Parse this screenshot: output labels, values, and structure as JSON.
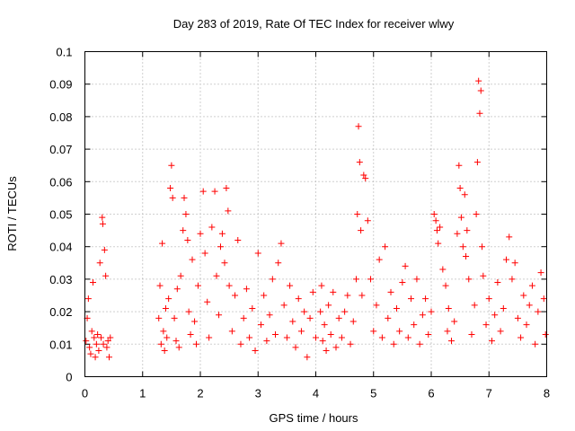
{
  "chart_data": {
    "type": "scatter",
    "title": "Day 283 of 2019, Rate Of TEC Index for receiver wlwy",
    "xlabel": "GPS time / hours",
    "ylabel": "ROTI / TECUs",
    "xlim": [
      0,
      8
    ],
    "ylim": [
      0,
      0.1
    ],
    "grid": true,
    "marker": "+",
    "colors": {
      "series": "#ff0000",
      "frame": "#000000",
      "grid": "#a0a0a0"
    },
    "x_ticks": [
      {
        "value": 0,
        "label": "0"
      },
      {
        "value": 1,
        "label": "1"
      },
      {
        "value": 2,
        "label": "2"
      },
      {
        "value": 3,
        "label": "3"
      },
      {
        "value": 4,
        "label": "4"
      },
      {
        "value": 5,
        "label": "5"
      },
      {
        "value": 6,
        "label": "6"
      },
      {
        "value": 7,
        "label": "7"
      },
      {
        "value": 8,
        "label": "8"
      }
    ],
    "y_ticks": [
      {
        "value": 0,
        "label": "0"
      },
      {
        "value": 0.01,
        "label": "0.01"
      },
      {
        "value": 0.02,
        "label": "0.02"
      },
      {
        "value": 0.03,
        "label": "0.03"
      },
      {
        "value": 0.04,
        "label": "0.04"
      },
      {
        "value": 0.05,
        "label": "0.05"
      },
      {
        "value": 0.06,
        "label": "0.06"
      },
      {
        "value": 0.07,
        "label": "0.07"
      },
      {
        "value": 0.08,
        "label": "0.08"
      },
      {
        "value": 0.09,
        "label": "0.09"
      },
      {
        "value": 0.1,
        "label": "0.1"
      }
    ],
    "series": [
      {
        "name": "ROTI",
        "points": [
          [
            0.02,
            0.011
          ],
          [
            0.04,
            0.018
          ],
          [
            0.06,
            0.024
          ],
          [
            0.08,
            0.009
          ],
          [
            0.1,
            0.007
          ],
          [
            0.12,
            0.014
          ],
          [
            0.14,
            0.029
          ],
          [
            0.16,
            0.012
          ],
          [
            0.18,
            0.006
          ],
          [
            0.2,
            0.01
          ],
          [
            0.22,
            0.013
          ],
          [
            0.24,
            0.008
          ],
          [
            0.26,
            0.035
          ],
          [
            0.28,
            0.012
          ],
          [
            0.3,
            0.049
          ],
          [
            0.31,
            0.047
          ],
          [
            0.32,
            0.01
          ],
          [
            0.34,
            0.039
          ],
          [
            0.36,
            0.031
          ],
          [
            0.38,
            0.009
          ],
          [
            0.4,
            0.011
          ],
          [
            0.42,
            0.006
          ],
          [
            0.44,
            0.012
          ],
          [
            1.28,
            0.018
          ],
          [
            1.3,
            0.028
          ],
          [
            1.32,
            0.01
          ],
          [
            1.34,
            0.041
          ],
          [
            1.36,
            0.014
          ],
          [
            1.38,
            0.008
          ],
          [
            1.4,
            0.021
          ],
          [
            1.42,
            0.012
          ],
          [
            1.45,
            0.024
          ],
          [
            1.48,
            0.058
          ],
          [
            1.5,
            0.065
          ],
          [
            1.52,
            0.055
          ],
          [
            1.55,
            0.018
          ],
          [
            1.58,
            0.011
          ],
          [
            1.6,
            0.027
          ],
          [
            1.63,
            0.009
          ],
          [
            1.66,
            0.031
          ],
          [
            1.7,
            0.045
          ],
          [
            1.72,
            0.055
          ],
          [
            1.75,
            0.05
          ],
          [
            1.78,
            0.042
          ],
          [
            1.8,
            0.02
          ],
          [
            1.83,
            0.013
          ],
          [
            1.86,
            0.036
          ],
          [
            1.9,
            0.017
          ],
          [
            1.93,
            0.01
          ],
          [
            1.96,
            0.028
          ],
          [
            2.0,
            0.044
          ],
          [
            2.05,
            0.057
          ],
          [
            2.08,
            0.038
          ],
          [
            2.12,
            0.023
          ],
          [
            2.15,
            0.012
          ],
          [
            2.2,
            0.046
          ],
          [
            2.25,
            0.057
          ],
          [
            2.28,
            0.031
          ],
          [
            2.32,
            0.019
          ],
          [
            2.35,
            0.04
          ],
          [
            2.38,
            0.044
          ],
          [
            2.42,
            0.035
          ],
          [
            2.45,
            0.058
          ],
          [
            2.48,
            0.051
          ],
          [
            2.5,
            0.028
          ],
          [
            2.55,
            0.014
          ],
          [
            2.6,
            0.025
          ],
          [
            2.65,
            0.042
          ],
          [
            2.7,
            0.01
          ],
          [
            2.75,
            0.018
          ],
          [
            2.8,
            0.027
          ],
          [
            2.85,
            0.012
          ],
          [
            2.9,
            0.021
          ],
          [
            2.95,
            0.008
          ],
          [
            3.0,
            0.038
          ],
          [
            3.05,
            0.016
          ],
          [
            3.1,
            0.025
          ],
          [
            3.15,
            0.011
          ],
          [
            3.2,
            0.019
          ],
          [
            3.25,
            0.03
          ],
          [
            3.3,
            0.013
          ],
          [
            3.35,
            0.035
          ],
          [
            3.4,
            0.041
          ],
          [
            3.45,
            0.022
          ],
          [
            3.5,
            0.012
          ],
          [
            3.55,
            0.028
          ],
          [
            3.6,
            0.017
          ],
          [
            3.65,
            0.009
          ],
          [
            3.7,
            0.024
          ],
          [
            3.75,
            0.014
          ],
          [
            3.8,
            0.02
          ],
          [
            3.85,
            0.006
          ],
          [
            3.9,
            0.018
          ],
          [
            3.95,
            0.026
          ],
          [
            4.0,
            0.012
          ],
          [
            4.08,
            0.02
          ],
          [
            4.1,
            0.028
          ],
          [
            4.12,
            0.011
          ],
          [
            4.15,
            0.016
          ],
          [
            4.18,
            0.008
          ],
          [
            4.22,
            0.022
          ],
          [
            4.26,
            0.013
          ],
          [
            4.3,
            0.026
          ],
          [
            4.35,
            0.009
          ],
          [
            4.4,
            0.018
          ],
          [
            4.45,
            0.012
          ],
          [
            4.5,
            0.02
          ],
          [
            4.55,
            0.025
          ],
          [
            4.6,
            0.01
          ],
          [
            4.65,
            0.017
          ],
          [
            4.7,
            0.03
          ],
          [
            4.72,
            0.05
          ],
          [
            4.74,
            0.077
          ],
          [
            4.76,
            0.066
          ],
          [
            4.78,
            0.045
          ],
          [
            4.8,
            0.025
          ],
          [
            4.83,
            0.062
          ],
          [
            4.86,
            0.061
          ],
          [
            4.9,
            0.048
          ],
          [
            4.95,
            0.03
          ],
          [
            5.0,
            0.014
          ],
          [
            5.05,
            0.022
          ],
          [
            5.1,
            0.036
          ],
          [
            5.15,
            0.012
          ],
          [
            5.2,
            0.04
          ],
          [
            5.25,
            0.018
          ],
          [
            5.3,
            0.026
          ],
          [
            5.35,
            0.01
          ],
          [
            5.4,
            0.021
          ],
          [
            5.45,
            0.014
          ],
          [
            5.5,
            0.029
          ],
          [
            5.55,
            0.034
          ],
          [
            5.6,
            0.012
          ],
          [
            5.65,
            0.024
          ],
          [
            5.7,
            0.016
          ],
          [
            5.75,
            0.03
          ],
          [
            5.8,
            0.01
          ],
          [
            5.85,
            0.019
          ],
          [
            5.9,
            0.024
          ],
          [
            5.95,
            0.013
          ],
          [
            6.0,
            0.02
          ],
          [
            6.05,
            0.05
          ],
          [
            6.08,
            0.048
          ],
          [
            6.1,
            0.045
          ],
          [
            6.12,
            0.041
          ],
          [
            6.15,
            0.046
          ],
          [
            6.2,
            0.033
          ],
          [
            6.25,
            0.028
          ],
          [
            6.28,
            0.014
          ],
          [
            6.3,
            0.021
          ],
          [
            6.35,
            0.011
          ],
          [
            6.4,
            0.017
          ],
          [
            6.45,
            0.044
          ],
          [
            6.48,
            0.065
          ],
          [
            6.5,
            0.058
          ],
          [
            6.52,
            0.049
          ],
          [
            6.55,
            0.04
          ],
          [
            6.58,
            0.056
          ],
          [
            6.6,
            0.037
          ],
          [
            6.62,
            0.045
          ],
          [
            6.65,
            0.03
          ],
          [
            6.7,
            0.013
          ],
          [
            6.75,
            0.022
          ],
          [
            6.78,
            0.05
          ],
          [
            6.8,
            0.066
          ],
          [
            6.82,
            0.091
          ],
          [
            6.84,
            0.081
          ],
          [
            6.86,
            0.088
          ],
          [
            6.88,
            0.04
          ],
          [
            6.9,
            0.031
          ],
          [
            6.95,
            0.016
          ],
          [
            7.0,
            0.024
          ],
          [
            7.05,
            0.011
          ],
          [
            7.1,
            0.019
          ],
          [
            7.15,
            0.029
          ],
          [
            7.2,
            0.014
          ],
          [
            7.25,
            0.021
          ],
          [
            7.3,
            0.036
          ],
          [
            7.35,
            0.043
          ],
          [
            7.4,
            0.03
          ],
          [
            7.45,
            0.035
          ],
          [
            7.5,
            0.018
          ],
          [
            7.55,
            0.012
          ],
          [
            7.6,
            0.025
          ],
          [
            7.65,
            0.016
          ],
          [
            7.7,
            0.022
          ],
          [
            7.75,
            0.028
          ],
          [
            7.8,
            0.01
          ],
          [
            7.85,
            0.02
          ],
          [
            7.9,
            0.032
          ],
          [
            7.95,
            0.024
          ],
          [
            7.98,
            0.013
          ]
        ]
      }
    ]
  }
}
